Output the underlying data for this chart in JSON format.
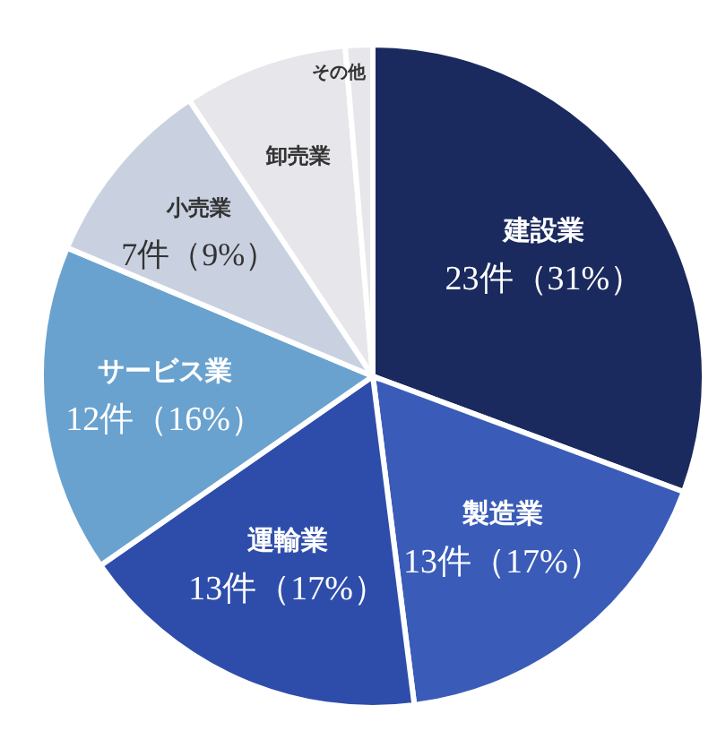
{
  "chart_data": {
    "type": "pie",
    "categories": [
      "建設業",
      "製造業",
      "運輸業",
      "サービス業",
      "小売業",
      "卸売業",
      "その他"
    ],
    "values": [
      23,
      13,
      13,
      12,
      7,
      6,
      1
    ],
    "colors": [
      "#1b2a5e",
      "#3a5cb8",
      "#2e4dab",
      "#6aa2cf",
      "#c9d1e1",
      "#e7e6ea",
      "#e7e6ea"
    ],
    "value_labels": [
      "23件（31%）",
      "13件（17%）",
      "13件（17%）",
      "12件（16%）",
      "7件（9%）",
      null,
      null
    ],
    "legend": false
  }
}
